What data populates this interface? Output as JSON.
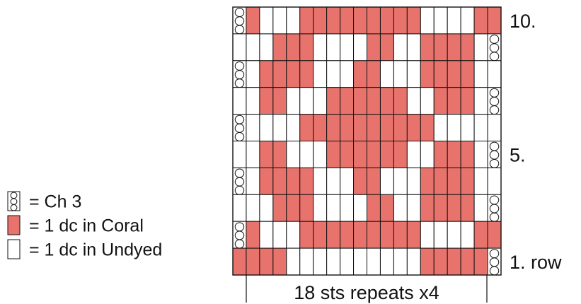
{
  "legend": [
    {
      "symbol": "chain",
      "text": "= Ch 3"
    },
    {
      "symbol": "coral",
      "text": "= 1 dc in Coral"
    },
    {
      "symbol": "undyed",
      "text": "= 1 dc in Undyed"
    }
  ],
  "colors": {
    "coral": "#e8736c",
    "undyed": "#ffffff",
    "grid_line": "#111111"
  },
  "row_labels": [
    {
      "row": 10,
      "text": "10."
    },
    {
      "row": 5,
      "text": "5."
    },
    {
      "row": 1,
      "text": "1. row"
    }
  ],
  "repeat_label": "18 sts repeats x4",
  "grid": {
    "rows": 10,
    "cols": 20,
    "cell_key": {
      "C": "chain",
      "R": "coral",
      "W": "undyed"
    },
    "rows_top_to_bottom": [
      "CRWWWRRRRRRRRRWWWWRR",
      "WWWRRRWWWWRRWWRRRRWC",
      "CWRRRRWWWRRWWWRRRRWW",
      "WWRRWWWRRRRRRWWRRRWC",
      "CWWWWRRRRRRRRRRWWWWW",
      "WWRRWWWRRRRRRWWRRRWC",
      "CWRRRRWWWRRWWWRRRRWW",
      "WWWRRRWWWWRRWWRRRRWC",
      "CRWWWRRRRRRRRRWWWWRR",
      "RRRRWWWWWWWWWWRRRRRC"
    ]
  }
}
